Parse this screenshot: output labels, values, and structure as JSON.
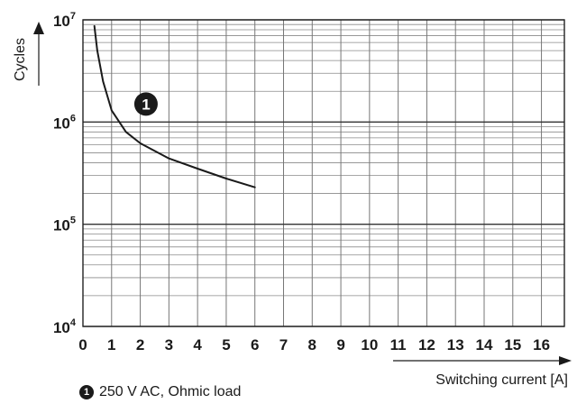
{
  "chart_data": {
    "type": "line",
    "title": "",
    "xlabel": "Switching current [A]",
    "ylabel": "Cycles",
    "xlim": [
      0,
      16.8
    ],
    "ylim": [
      10000,
      10000000
    ],
    "yscale": "log",
    "grid": true,
    "x_ticks": [
      "0",
      "1",
      "2",
      "3",
      "4",
      "5",
      "6",
      "7",
      "8",
      "9",
      "10",
      "11",
      "12",
      "13",
      "14",
      "15",
      "16"
    ],
    "y_ticks": [
      {
        "base": "10",
        "exp": "4",
        "value": 10000
      },
      {
        "base": "10",
        "exp": "5",
        "value": 100000
      },
      {
        "base": "10",
        "exp": "6",
        "value": 1000000
      },
      {
        "base": "10",
        "exp": "7",
        "value": 10000000
      }
    ],
    "series": [
      {
        "marker": "1",
        "label_position": [
          2.2,
          1500000
        ],
        "x": [
          0.4,
          0.5,
          0.7,
          1.0,
          1.5,
          2.0,
          3.0,
          4.0,
          5.0,
          6.0
        ],
        "y": [
          8700000,
          5000000,
          2500000,
          1300000,
          800000,
          620000,
          440000,
          350000,
          280000,
          230000
        ]
      }
    ],
    "legend": {
      "marker": "1",
      "text": "250 V AC, Ohmic load",
      "position": "bottom-left"
    },
    "color": "#1a1a1a"
  }
}
